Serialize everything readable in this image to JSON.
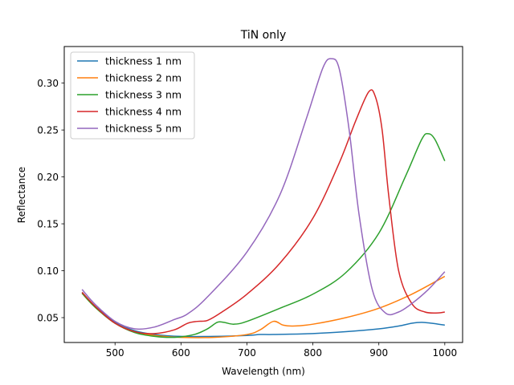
{
  "chart_data": {
    "type": "line",
    "title": "TiN only",
    "xlabel": "Wavelength (nm)",
    "ylabel": "Reflectance",
    "xlim": [
      423,
      1027
    ],
    "ylim": [
      0.0235,
      0.339
    ],
    "xticks": [
      500,
      600,
      700,
      800,
      900,
      1000
    ],
    "xtick_labels": [
      "500",
      "600",
      "700",
      "800",
      "900",
      "1000"
    ],
    "yticks": [
      0.05,
      0.1,
      0.15,
      0.2,
      0.25,
      0.3
    ],
    "ytick_labels": [
      "0.05",
      "0.10",
      "0.15",
      "0.20",
      "0.25",
      "0.30"
    ],
    "grid": false,
    "legend_position": "top-left",
    "series": [
      {
        "name": "thickness 1 nm",
        "color": "#1f77b4",
        "x": [
          450,
          470,
          500,
          530,
          560,
          600,
          650,
          700,
          720,
          740,
          800,
          850,
          900,
          930,
          950,
          965,
          980,
          1000
        ],
        "y": [
          0.077,
          0.062,
          0.045,
          0.036,
          0.032,
          0.03,
          0.03,
          0.031,
          0.032,
          0.032,
          0.033,
          0.035,
          0.038,
          0.041,
          0.044,
          0.045,
          0.044,
          0.042
        ]
      },
      {
        "name": "thickness 2 nm",
        "color": "#ff7f0e",
        "x": [
          450,
          470,
          500,
          530,
          560,
          600,
          650,
          700,
          720,
          740,
          755,
          770,
          800,
          850,
          900,
          950,
          1000
        ],
        "y": [
          0.076,
          0.061,
          0.044,
          0.035,
          0.031,
          0.029,
          0.029,
          0.032,
          0.037,
          0.046,
          0.042,
          0.041,
          0.043,
          0.05,
          0.06,
          0.075,
          0.094
        ]
      },
      {
        "name": "thickness 3 nm",
        "color": "#2ca02c",
        "x": [
          450,
          470,
          500,
          530,
          560,
          590,
          620,
          640,
          655,
          665,
          680,
          700,
          750,
          800,
          850,
          900,
          940,
          965,
          975,
          985,
          1000
        ],
        "y": [
          0.076,
          0.061,
          0.044,
          0.034,
          0.03,
          0.029,
          0.032,
          0.038,
          0.045,
          0.045,
          0.043,
          0.046,
          0.06,
          0.075,
          0.098,
          0.14,
          0.2,
          0.24,
          0.246,
          0.24,
          0.217
        ]
      },
      {
        "name": "thickness 4 nm",
        "color": "#d62728",
        "x": [
          450,
          470,
          500,
          530,
          560,
          590,
          610,
          625,
          640,
          660,
          700,
          750,
          800,
          840,
          865,
          885,
          895,
          905,
          915,
          930,
          950,
          970,
          990,
          1000
        ],
        "y": [
          0.077,
          0.062,
          0.044,
          0.035,
          0.033,
          0.037,
          0.044,
          0.046,
          0.047,
          0.055,
          0.075,
          0.108,
          0.156,
          0.215,
          0.26,
          0.291,
          0.285,
          0.25,
          0.18,
          0.1,
          0.065,
          0.056,
          0.055,
          0.056
        ]
      },
      {
        "name": "thickness 5 nm",
        "color": "#9467bd",
        "x": [
          450,
          470,
          500,
          530,
          560,
          590,
          610,
          640,
          700,
          750,
          790,
          815,
          828,
          840,
          855,
          870,
          890,
          910,
          930,
          950,
          975,
          1000
        ],
        "y": [
          0.08,
          0.064,
          0.046,
          0.038,
          0.04,
          0.048,
          0.054,
          0.072,
          0.12,
          0.181,
          0.262,
          0.316,
          0.326,
          0.315,
          0.25,
          0.16,
          0.08,
          0.055,
          0.056,
          0.065,
          0.08,
          0.099
        ]
      }
    ]
  }
}
